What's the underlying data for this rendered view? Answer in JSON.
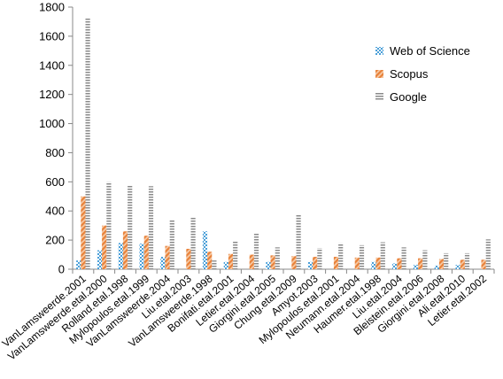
{
  "chart_data": {
    "type": "bar",
    "ylim": [
      0,
      1800
    ],
    "yticks": [
      0,
      200,
      400,
      600,
      800,
      1000,
      1200,
      1400,
      1600,
      1800
    ],
    "grid": false,
    "legend_position": "right",
    "categories": [
      "VanLamsweerde.2001",
      "VanLamsweerde.etal.2000",
      "Rolland.etal.1998",
      "Mylopoulos.etal.1999",
      "VanLamsweerde.2004",
      "Liu.etal.2003",
      "VanLamsweerde.1998",
      "Bonifati.etal.2001",
      "Letier.etal.2004",
      "Giorgini.etal.2005",
      "Chung.etal.2009",
      "Amyot.2003",
      "Mylopoulos.etal.2001",
      "Neumann.etal.2004",
      "Haumer.etal.1998",
      "Liu.etal.2004",
      "Bleistein.etal.2006",
      "Giorgini.etal.2008",
      "Ali.etal.2010",
      "Letier.etal.2002"
    ],
    "series": [
      {
        "name": "Web of Science",
        "color": "#4a9fd8",
        "pattern": "checker",
        "values": [
          60,
          130,
          180,
          175,
          85,
          0,
          260,
          50,
          0,
          50,
          0,
          50,
          0,
          0,
          50,
          40,
          30,
          25,
          30,
          0
        ]
      },
      {
        "name": "Scopus",
        "color": "#e8823a",
        "pattern": "diagonal",
        "values": [
          500,
          300,
          260,
          230,
          160,
          140,
          120,
          105,
          100,
          95,
          90,
          85,
          85,
          80,
          80,
          75,
          75,
          70,
          65,
          65
        ]
      },
      {
        "name": "Google",
        "color": "#8a8a8a",
        "pattern": "horizontal",
        "values": [
          1730,
          600,
          580,
          570,
          340,
          360,
          60,
          190,
          250,
          150,
          375,
          145,
          180,
          165,
          185,
          150,
          130,
          110,
          110,
          205
        ]
      }
    ]
  }
}
